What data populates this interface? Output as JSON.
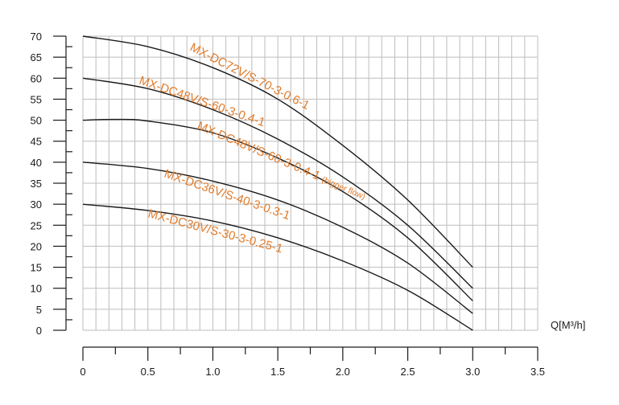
{
  "chart_data": {
    "type": "line",
    "title": "",
    "xlabel": "Q[M³/h]",
    "ylabel": "",
    "xlim": [
      0,
      3.5
    ],
    "ylim": [
      0,
      70
    ],
    "grid": true,
    "x_ticks": [
      "0",
      "0.5",
      "1.0",
      "1.5",
      "2.0",
      "2.5",
      "3.0",
      "3.5"
    ],
    "y_ticks": [
      "0",
      "5",
      "10",
      "15",
      "20",
      "25",
      "30",
      "35",
      "40",
      "45",
      "50",
      "55",
      "60",
      "65",
      "70"
    ],
    "series": [
      {
        "name": "MX-DC72V/S-70-3-0.6-1",
        "color": "#1a1a1a",
        "x": [
          0,
          0.5,
          1.0,
          1.5,
          2.0,
          2.5,
          3.0
        ],
        "y": [
          70,
          67.5,
          62.5,
          55,
          44,
          31,
          15
        ]
      },
      {
        "name": "MX-DC48V/S-60-3-0.4-1",
        "color": "#1a1a1a",
        "x": [
          0,
          0.5,
          1.0,
          1.5,
          2.0,
          2.5,
          3.0
        ],
        "y": [
          60,
          57.5,
          52.5,
          45.5,
          36.5,
          25,
          10
        ]
      },
      {
        "name": "MX-DC48V/S-60-3-0.4-1",
        "name_suffix": "(bigger flow)",
        "color": "#1a1a1a",
        "x": [
          0,
          0.25,
          0.5,
          1.0,
          1.5,
          2.0,
          2.5,
          3.0
        ],
        "y": [
          50,
          50.2,
          49.8,
          47,
          41,
          33,
          22,
          7
        ]
      },
      {
        "name": "MX-DC36V/S-40-3-0.3-1",
        "color": "#1a1a1a",
        "x": [
          0,
          0.5,
          1.0,
          1.5,
          2.0,
          2.5,
          3.0
        ],
        "y": [
          40,
          38.5,
          35.5,
          31,
          24.5,
          16,
          4
        ]
      },
      {
        "name": "MX-DC30V/S-30-3-0.25-1",
        "color": "#1a1a1a",
        "x": [
          0,
          0.5,
          1.0,
          1.5,
          2.0,
          2.5,
          3.0
        ],
        "y": [
          30,
          28.5,
          26,
          22,
          16.5,
          9.5,
          0
        ]
      }
    ],
    "label_color": "#e07b2a"
  }
}
